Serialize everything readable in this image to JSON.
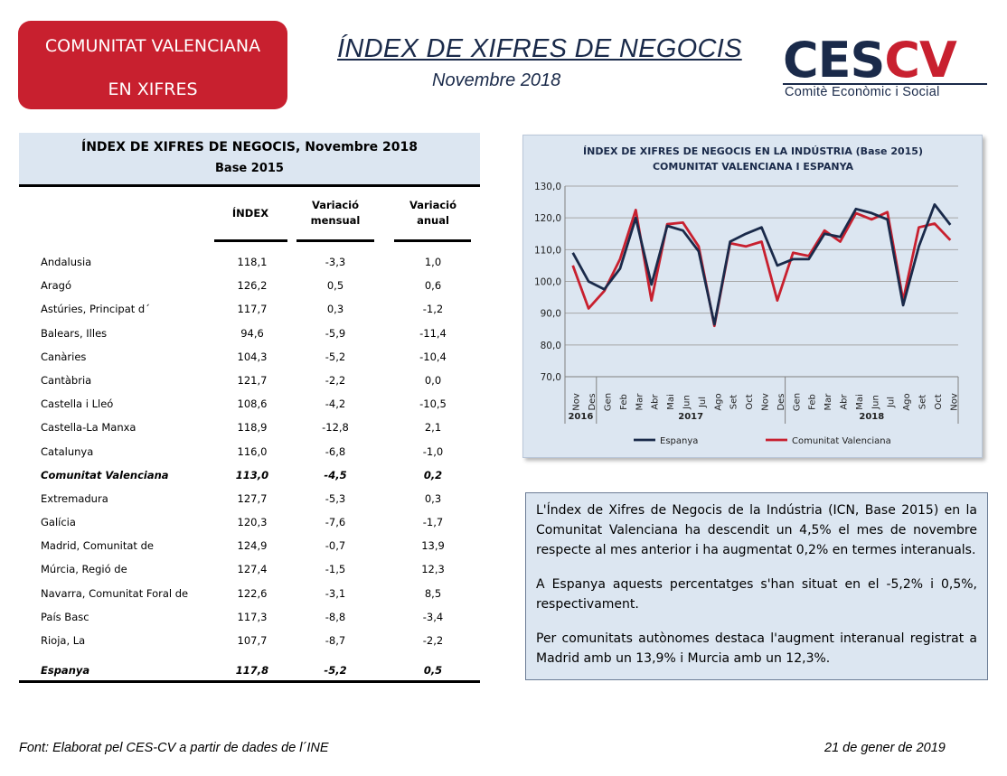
{
  "badge": {
    "line1": "COMUNITAT VALENCIANA",
    "line2": "EN XIFRES"
  },
  "header": {
    "title": "ÍNDEX DE XIFRES DE NEGOCIS",
    "subtitle": "Novembre 2018"
  },
  "logo": {
    "ces": "CES",
    "cv": "CV",
    "sub": "Comitè Econòmic i Social"
  },
  "table": {
    "title": "ÍNDEX DE XIFRES DE NEGOCIS, Novembre 2018",
    "base": "Base 2015",
    "col_index": "ÍNDEX",
    "col_monthly": "Variació mensual",
    "col_annual": "Variació anual",
    "rows": [
      {
        "name": "Andalusia",
        "index": "118,1",
        "monthly": "-3,3",
        "annual": "1,0"
      },
      {
        "name": "Aragó",
        "index": "126,2",
        "monthly": "0,5",
        "annual": "0,6"
      },
      {
        "name": "Astúries, Principat d´",
        "index": "117,7",
        "monthly": "0,3",
        "annual": "-1,2"
      },
      {
        "name": "Balears, Illes",
        "index": "94,6",
        "monthly": "-5,9",
        "annual": "-11,4"
      },
      {
        "name": "Canàries",
        "index": "104,3",
        "monthly": "-5,2",
        "annual": "-10,4"
      },
      {
        "name": "Cantàbria",
        "index": "121,7",
        "monthly": "-2,2",
        "annual": "0,0"
      },
      {
        "name": "Castella i Lleó",
        "index": "108,6",
        "monthly": "-4,2",
        "annual": "-10,5"
      },
      {
        "name": "Castella-La Manxa",
        "index": "118,9",
        "monthly": "-12,8",
        "annual": "2,1"
      },
      {
        "name": "Catalunya",
        "index": "116,0",
        "monthly": "-6,8",
        "annual": "-1,0"
      },
      {
        "name": "Comunitat Valenciana",
        "index": "113,0",
        "monthly": "-4,5",
        "annual": "0,2"
      },
      {
        "name": "Extremadura",
        "index": "127,7",
        "monthly": "-5,3",
        "annual": "0,3"
      },
      {
        "name": "Galícia",
        "index": "120,3",
        "monthly": "-7,6",
        "annual": "-1,7"
      },
      {
        "name": "Madrid, Comunitat de",
        "index": "124,9",
        "monthly": "-0,7",
        "annual": "13,9"
      },
      {
        "name": "Múrcia, Regió de",
        "index": "127,4",
        "monthly": "-1,5",
        "annual": "12,3"
      },
      {
        "name": "Navarra, Comunitat Foral de",
        "index": "122,6",
        "monthly": "-3,1",
        "annual": "8,5"
      },
      {
        "name": "País Basc",
        "index": "117,3",
        "monthly": "-8,8",
        "annual": "-3,4"
      },
      {
        "name": "Rioja, La",
        "index": "107,7",
        "monthly": "-8,7",
        "annual": "-2,2"
      }
    ],
    "total": {
      "name": "Espanya",
      "index": "117,8",
      "monthly": "-5,2",
      "annual": "0,5"
    }
  },
  "chart_data": {
    "type": "line",
    "title_line1": "ÍNDEX DE XIFRES DE NEGOCIS EN LA INDÚSTRIA (Base 2015)",
    "title_line2": "COMUNITAT VALENCIANA I ESPANYA",
    "categories": [
      "Nov",
      "Des",
      "Gen",
      "Feb",
      "Mar",
      "Abr",
      "Mai",
      "Jun",
      "Jul",
      "Ago",
      "Set",
      "Oct",
      "Nov",
      "Des",
      "Gen",
      "Feb",
      "Mar",
      "Abr",
      "Mai",
      "Jun",
      "Jul",
      "Ago",
      "Set",
      "Oct",
      "Nov"
    ],
    "year_groups": [
      {
        "label": "2016",
        "from": 0,
        "to": 1
      },
      {
        "label": "2017",
        "from": 2,
        "to": 13
      },
      {
        "label": "2018",
        "from": 14,
        "to": 24
      }
    ],
    "ylim": [
      70,
      130
    ],
    "yticks": [
      "70,0",
      "80,0",
      "90,0",
      "100,0",
      "110,0",
      "120,0",
      "130,0"
    ],
    "grid": true,
    "legend_position": "bottom",
    "series": [
      {
        "name": "Espanya",
        "color": "#1a2a4a",
        "values": [
          109,
          100,
          97.5,
          104,
          120,
          99,
          117.5,
          116,
          109.5,
          86.5,
          112.5,
          115,
          117,
          105,
          107,
          107,
          115,
          114,
          122.8,
          121.5,
          119.5,
          92.5,
          111,
          124.2,
          117.8
        ]
      },
      {
        "name": "Comunitat Valenciana",
        "color": "#c8202f",
        "values": [
          105,
          91.5,
          97,
          107,
          122.5,
          94,
          118,
          118.5,
          111,
          86,
          112,
          111,
          112.5,
          94,
          109,
          108,
          116,
          112.5,
          121.5,
          119.5,
          121.8,
          94,
          117,
          118.2,
          113
        ]
      }
    ]
  },
  "text_box": {
    "p1": "L'Índex de Xifres de Negocis de la Indústria (ICN, Base 2015) en la Comunitat Valenciana ha descendit un 4,5% el mes de novembre respecte al mes anterior i ha augmentat 0,2% en termes interanuals.",
    "p2": "A Espanya aquests percentatges s'han situat en el -5,2% i 0,5%, respectivament.",
    "p3": "Per comunitats autònomes destaca l'augment interanual registrat a Madrid amb un 13,9% i Murcia amb un 12,3%."
  },
  "footer": {
    "source": "Font: Elaborat pel CES-CV a partir de dades de l´INE",
    "date": "21 de gener de 2019"
  }
}
